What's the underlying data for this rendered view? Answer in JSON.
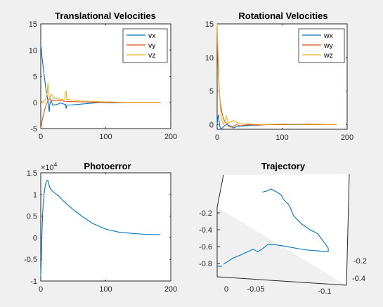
{
  "chart_data": [
    {
      "id": "translational",
      "type": "line",
      "title": "Translational Velocities",
      "xlim": [
        0,
        200
      ],
      "ylim": [
        -5,
        15
      ],
      "xticks": [
        "0",
        "100",
        "200"
      ],
      "yticks": [
        "-5",
        "0",
        "5",
        "10",
        "15"
      ],
      "legend": {
        "placement": "top-right",
        "entries": [
          "vx",
          "vy",
          "vz"
        ]
      },
      "series": [
        {
          "name": "vx",
          "color": "#0072BD",
          "x": [
            0,
            2,
            4,
            6,
            8,
            10,
            12,
            13,
            14,
            16,
            18,
            20,
            25,
            30,
            35,
            38,
            39,
            40,
            45,
            55,
            65,
            75,
            90,
            110,
            130,
            150,
            170,
            184
          ],
          "y": [
            11,
            8.5,
            6.5,
            4.5,
            2.5,
            1,
            -0.5,
            -1.8,
            -0.3,
            0.4,
            -0.4,
            -0.5,
            -0.4,
            -0.1,
            -0.3,
            -0.4,
            -1.2,
            -0.5,
            -0.5,
            -0.4,
            -0.3,
            -0.2,
            0,
            -0.1,
            0,
            0,
            0,
            0
          ]
        },
        {
          "name": "vy",
          "color": "#D95319",
          "x": [
            0,
            2,
            4,
            6,
            8,
            10,
            12,
            14,
            16,
            20,
            25,
            30,
            40,
            60,
            100,
            140,
            184
          ],
          "y": [
            -5,
            -3.5,
            -2.5,
            -1.5,
            -0.6,
            0,
            0.5,
            0.8,
            0.4,
            0.4,
            0.3,
            0.3,
            0.2,
            0.1,
            0,
            0,
            0
          ]
        },
        {
          "name": "vz",
          "color": "#EDB120",
          "x": [
            0,
            2,
            4,
            6,
            8,
            10,
            11,
            12,
            13,
            14,
            16,
            18,
            20,
            22,
            25,
            28,
            30,
            35,
            37,
            38,
            39,
            40,
            45,
            60,
            80,
            100,
            140,
            184
          ],
          "y": [
            0,
            0.2,
            -0.1,
            0.3,
            0.8,
            2,
            3.7,
            2.5,
            1.2,
            0.9,
            1.6,
            1.3,
            0.8,
            0.9,
            0.7,
            0.6,
            0.6,
            0.5,
            0.7,
            1.9,
            2.2,
            0.6,
            0.5,
            0.3,
            0.2,
            0.1,
            0,
            0
          ]
        }
      ]
    },
    {
      "id": "rotational",
      "type": "line",
      "title": "Rotational Velocities",
      "xlim": [
        0,
        200
      ],
      "ylim": [
        -0.7,
        15
      ],
      "xticks": [
        "0",
        "100",
        "200"
      ],
      "yticks": [
        "0",
        "5",
        "10",
        "15"
      ],
      "legend": {
        "placement": "top-right",
        "entries": [
          "wx",
          "wy",
          "wz"
        ]
      },
      "series": [
        {
          "name": "wx",
          "color": "#0072BD",
          "x": [
            0,
            1,
            2,
            3,
            4,
            5,
            6,
            8,
            10,
            12,
            15,
            20,
            25,
            30,
            40,
            50,
            60,
            80,
            100,
            130,
            160,
            184
          ],
          "y": [
            0.1,
            1,
            1.5,
            0.5,
            -0.2,
            -0.5,
            -0.6,
            -0.5,
            -0.3,
            -0.1,
            0,
            -0.2,
            -0.5,
            -0.3,
            -0.2,
            -0.1,
            -0.1,
            0,
            0,
            0,
            0,
            0
          ]
        },
        {
          "name": "wy",
          "color": "#D95319",
          "x": [
            0,
            1,
            2,
            3,
            4,
            6,
            8,
            10,
            12,
            15,
            18,
            22,
            26,
            30,
            35,
            40,
            50,
            60,
            80,
            100,
            140,
            184
          ],
          "y": [
            14,
            10,
            7.5,
            5.5,
            4,
            2.5,
            1.5,
            0.8,
            0.4,
            0.2,
            -0.3,
            -0.4,
            -0.2,
            0,
            -0.2,
            -0.1,
            0,
            -0.1,
            0,
            0,
            0.1,
            0
          ]
        },
        {
          "name": "wz",
          "color": "#EDB120",
          "x": [
            0,
            1,
            2,
            3,
            4,
            5,
            6,
            8,
            10,
            12,
            14,
            16,
            18,
            20,
            25,
            30,
            35,
            40,
            50,
            70,
            100,
            140,
            184
          ],
          "y": [
            15,
            12,
            9,
            6,
            4,
            2.5,
            1.2,
            0.3,
            0.1,
            0.5,
            1.3,
            0.6,
            0.2,
            0.4,
            0.6,
            0.3,
            0.2,
            0.1,
            0.1,
            0,
            0.1,
            0,
            0
          ]
        }
      ]
    },
    {
      "id": "photoerror",
      "type": "line",
      "title": "Photoerror",
      "xlim": [
        0,
        200
      ],
      "ylim": [
        -1,
        1.5
      ],
      "y_exponent_base": "×10",
      "y_exponent_power": "4",
      "xticks": [
        "0",
        "100",
        "200"
      ],
      "yticks": [
        "-1",
        "-0.5",
        "0",
        "0.5",
        "1",
        "1.5"
      ],
      "series": [
        {
          "name": "photoerror",
          "color": "#0072BD",
          "x": [
            0,
            1,
            2,
            3,
            5,
            7,
            9,
            10,
            11,
            12,
            13,
            15,
            18,
            22,
            28,
            34,
            40,
            50,
            65,
            80,
            100,
            120,
            140,
            160,
            184
          ],
          "y": [
            -0.9,
            -0.4,
            0.2,
            0.6,
            1.0,
            1.22,
            1.3,
            1.33,
            1.32,
            1.28,
            1.2,
            1.12,
            1.08,
            1.03,
            0.96,
            0.86,
            0.78,
            0.65,
            0.48,
            0.33,
            0.2,
            0.13,
            0.1,
            0.08,
            0.07
          ]
        }
      ]
    },
    {
      "id": "trajectory",
      "type": "line",
      "title": "Trajectory",
      "projection": "3d",
      "xticks": [
        "0",
        "-0.05",
        "-0.1"
      ],
      "yticks": [
        "-0.2",
        "-0.4"
      ],
      "zticks": [
        "-0.2",
        "-0.4",
        "-0.6",
        "-0.8"
      ],
      "series": [
        {
          "name": "trajectory",
          "color": "#0072BD",
          "x": [
            0.0,
            -0.01,
            -0.02,
            -0.03,
            -0.035,
            -0.04,
            -0.045,
            -0.05,
            -0.055,
            -0.06,
            -0.07,
            -0.08,
            -0.09,
            -0.1,
            -0.105,
            -0.11,
            -0.115,
            -0.12,
            -0.12,
            -0.11,
            -0.1,
            -0.095,
            -0.09,
            -0.085,
            -0.08,
            -0.078,
            -0.076,
            -0.073,
            -0.068,
            -0.065,
            -0.055,
            -0.05,
            -0.045
          ],
          "y": [
            0.0,
            -0.02,
            -0.05,
            -0.08,
            -0.1,
            -0.11,
            -0.11,
            -0.12,
            -0.14,
            -0.16,
            -0.2,
            -0.24,
            -0.28,
            -0.3,
            -0.3,
            -0.3,
            -0.3,
            -0.3,
            -0.3,
            -0.3,
            -0.27,
            -0.25,
            -0.23,
            -0.21,
            -0.2,
            -0.19,
            -0.18,
            -0.17,
            -0.16,
            -0.15,
            -0.14,
            -0.13,
            -0.12
          ],
          "z": [
            -0.58,
            -0.5,
            -0.44,
            -0.38,
            -0.35,
            -0.37,
            -0.33,
            -0.28,
            -0.27,
            -0.26,
            -0.25,
            -0.245,
            -0.24,
            -0.24,
            -0.24,
            -0.24,
            -0.24,
            -0.24,
            -0.2,
            -0.05,
            -0.02,
            0.0,
            0.02,
            0.05,
            0.1,
            0.13,
            0.17,
            0.21,
            0.25,
            0.3,
            0.35,
            0.32,
            0.3
          ]
        }
      ]
    }
  ]
}
